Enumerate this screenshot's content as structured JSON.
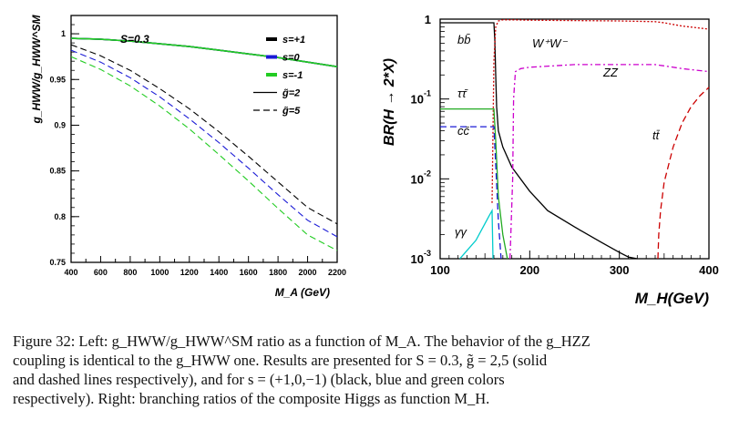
{
  "chart_data": [
    {
      "type": "line",
      "title": "",
      "xlabel": "M_A (GeV)",
      "ylabel": "g_HWW/g_HWW^SM",
      "xlim": [
        400,
        2200
      ],
      "ylim": [
        0.75,
        1.02
      ],
      "x_ticks": [
        "400",
        "600",
        "800",
        "1000",
        "1200",
        "1400",
        "1600",
        "1800",
        "2000",
        "2200"
      ],
      "y_ticks": [
        "0.75",
        "0.8",
        "0.85",
        "0.9",
        "0.95",
        "1"
      ],
      "grid": false,
      "legend_position": "top-right",
      "annotation": "S=0.3",
      "legend": [
        {
          "label": "s=+1",
          "color": "#000000",
          "style": "solid-thick"
        },
        {
          "label": "s=0",
          "color": "#1a1ad6",
          "style": "solid-thick"
        },
        {
          "label": "s=-1",
          "color": "#22cc22",
          "style": "solid-thick"
        },
        {
          "label": "g̃=2",
          "color": "#000000",
          "style": "solid"
        },
        {
          "label": "g̃=5",
          "color": "#000000",
          "style": "dashed"
        }
      ],
      "x": [
        400,
        600,
        800,
        1000,
        1200,
        1400,
        1600,
        1800,
        2000,
        2200
      ],
      "series": [
        {
          "name": "s=+1",
          "style": "solid",
          "color": "#000000",
          "values": [
            0.995,
            0.994,
            0.992,
            0.989,
            0.986,
            0.982,
            0.978,
            0.974,
            0.969,
            0.964
          ]
        },
        {
          "name": "s=0",
          "style": "solid",
          "color": "#1a1ad6",
          "values": [
            0.995,
            0.994,
            0.992,
            0.989,
            0.986,
            0.982,
            0.978,
            0.974,
            0.969,
            0.964
          ]
        },
        {
          "name": "s=-1",
          "style": "solid",
          "color": "#22cc22",
          "values": [
            0.995,
            0.994,
            0.992,
            0.989,
            0.986,
            0.982,
            0.978,
            0.974,
            0.969,
            0.964
          ]
        },
        {
          "name": "s=+1",
          "style": "dashed",
          "color": "#000000",
          "values": [
            0.988,
            0.976,
            0.96,
            0.94,
            0.918,
            0.893,
            0.866,
            0.838,
            0.81,
            0.792
          ]
        },
        {
          "name": "s=0",
          "style": "dashed",
          "color": "#1a1ad6",
          "values": [
            0.982,
            0.969,
            0.952,
            0.931,
            0.907,
            0.881,
            0.853,
            0.824,
            0.796,
            0.778
          ]
        },
        {
          "name": "s=-1",
          "style": "dashed",
          "color": "#22cc22",
          "values": [
            0.975,
            0.961,
            0.943,
            0.921,
            0.896,
            0.868,
            0.839,
            0.809,
            0.78,
            0.763
          ]
        }
      ]
    },
    {
      "type": "line",
      "title": "",
      "xlabel": "M_H(GeV)",
      "ylabel": "BR(H → 2*X)",
      "xlim": [
        100,
        400
      ],
      "ylim": [
        0.001,
        1
      ],
      "y_scale": "log",
      "x_ticks": [
        "100",
        "200",
        "300",
        "400"
      ],
      "y_ticks": [
        "10^-3",
        "10^-2",
        "10^-1",
        "1"
      ],
      "grid": false,
      "series": [
        {
          "name": "bb̄",
          "color": "#000000",
          "style": "solid",
          "x": [
            100,
            158,
            159,
            160,
            161,
            162,
            163,
            165,
            170,
            180,
            200,
            220,
            250,
            280,
            300,
            310,
            320
          ],
          "values": [
            0.9,
            0.9,
            0.9,
            0.9,
            0.55,
            0.2,
            0.08,
            0.04,
            0.025,
            0.014,
            0.007,
            0.004,
            0.0025,
            0.0016,
            0.0012,
            0.00105,
            0.001
          ]
        },
        {
          "name": "W⁺W⁻",
          "color": "#cc0000",
          "style": "dotted",
          "x": [
            158,
            160,
            162,
            165,
            170,
            180,
            200,
            250,
            300,
            340,
            350,
            370,
            400
          ],
          "values": [
            0.005,
            0.3,
            0.8,
            0.95,
            0.98,
            0.98,
            0.97,
            0.96,
            0.95,
            0.93,
            0.9,
            0.82,
            0.75
          ]
        },
        {
          "name": "ZZ",
          "color": "#cc00cc",
          "style": "dash-dot",
          "x": [
            178,
            181,
            182,
            184,
            190,
            200,
            250,
            300,
            340,
            350,
            370,
            400
          ],
          "values": [
            0.001,
            0.01,
            0.1,
            0.22,
            0.24,
            0.25,
            0.27,
            0.27,
            0.27,
            0.26,
            0.24,
            0.22
          ]
        },
        {
          "name": "tt̄",
          "color": "#cc0000",
          "style": "dashed",
          "x": [
            343,
            344,
            346,
            350,
            360,
            370,
            380,
            390,
            400
          ],
          "values": [
            0.001,
            0.002,
            0.004,
            0.009,
            0.025,
            0.05,
            0.08,
            0.11,
            0.14
          ]
        },
        {
          "name": "ττ̄",
          "color": "#22aa22",
          "style": "solid",
          "x": [
            100,
            158,
            160,
            162,
            165,
            170,
            175
          ],
          "values": [
            0.075,
            0.075,
            0.075,
            0.03,
            0.006,
            0.002,
            0.001
          ]
        },
        {
          "name": "cc̄",
          "color": "#1a1ad6",
          "style": "dashed",
          "x": [
            100,
            158,
            160,
            162,
            165,
            168
          ],
          "values": [
            0.045,
            0.045,
            0.045,
            0.015,
            0.003,
            0.001
          ]
        },
        {
          "name": "γγ",
          "color": "#00cccc",
          "style": "solid",
          "x": [
            122,
            140,
            155,
            158,
            159
          ],
          "values": [
            0.001,
            0.0017,
            0.0035,
            0.004,
            0.001
          ]
        }
      ],
      "labels": [
        "bb̄",
        "W⁺W⁻",
        "ττ̄",
        "ZZ",
        "cc̄",
        "tt̄",
        "γγ"
      ]
    }
  ],
  "caption": {
    "line1": "Figure 32:   Left: g_HWW/g_HWW^SM ratio as a function of M_A.  The behavior of the g_HZZ",
    "line2": "coupling is identical to the g_HWW one. Results are presented for S = 0.3, g̃ = 2,5 (solid",
    "line3": "and dashed lines respectively), and for s = (+1,0,−1) (black, blue and green colors",
    "line4": "respectively). Right: branching ratios of the composite Higgs as function M_H."
  }
}
